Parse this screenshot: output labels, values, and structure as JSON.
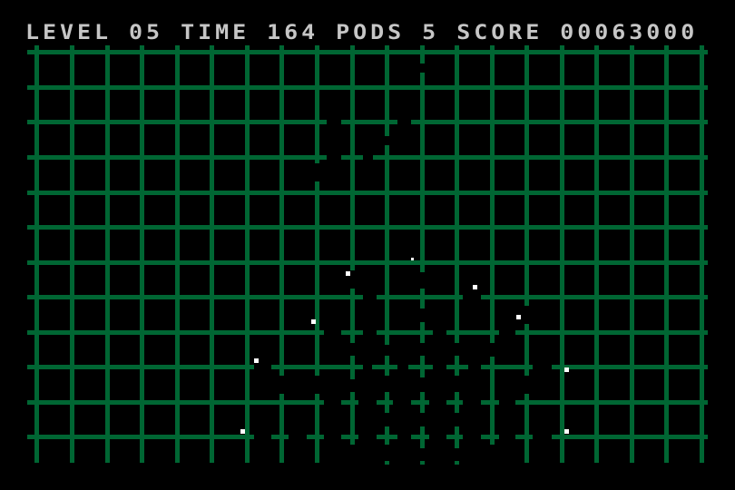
{
  "hud": {
    "level_label": "LEVEL",
    "level": "05",
    "time_label": "TIME",
    "time": "164",
    "pods_label": "PODS",
    "pods": "5",
    "score_label": "SCORE",
    "score": "00063000"
  },
  "colors": {
    "background": "#000000",
    "grid": "#006633",
    "hud_text": "#c6c6c6",
    "pod": "#ffffff"
  }
}
